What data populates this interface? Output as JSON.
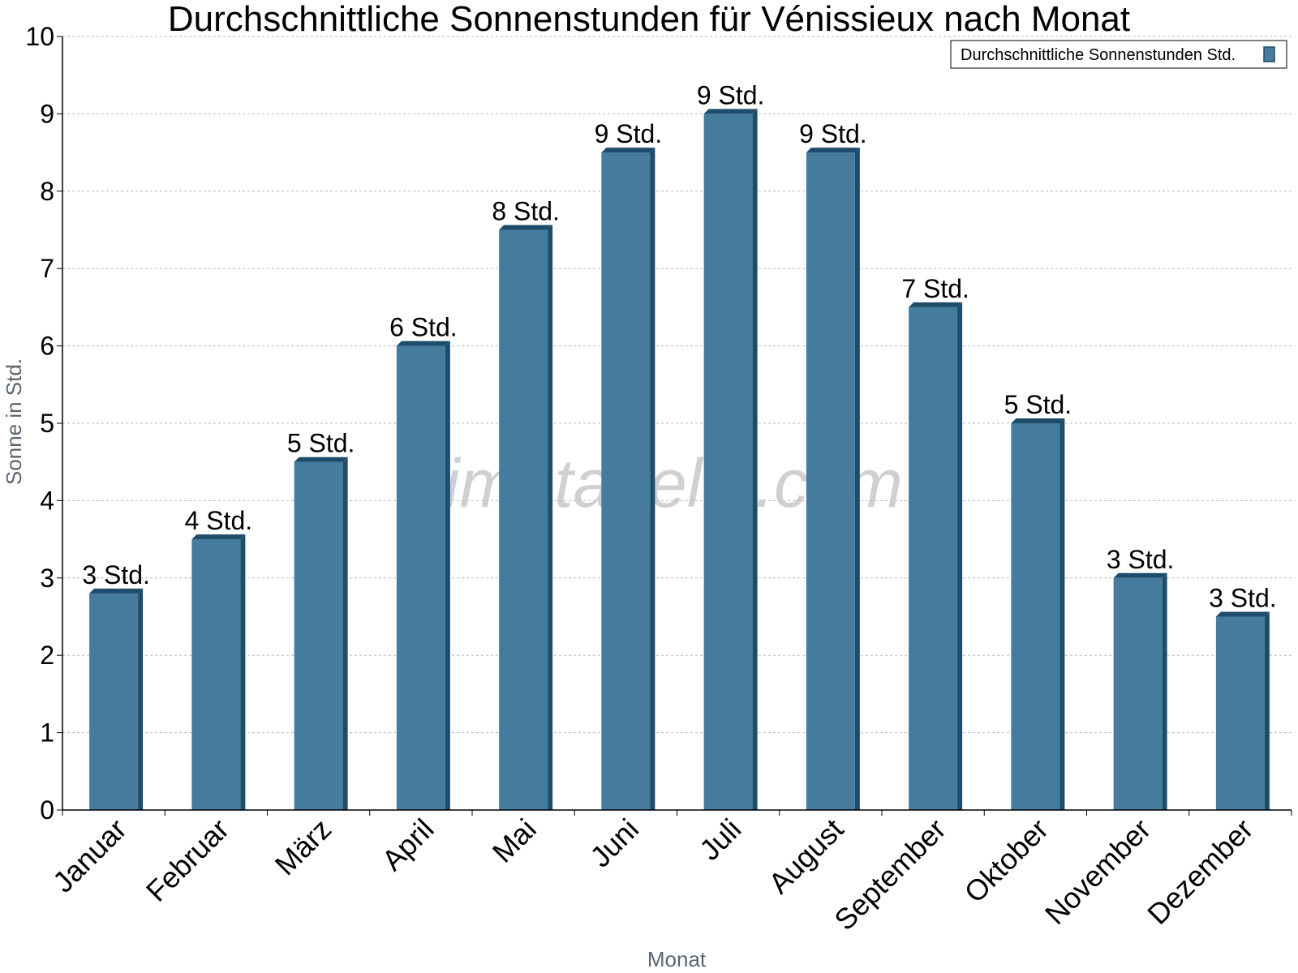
{
  "chart_data": {
    "type": "bar",
    "title": "Durchschnittliche Sonnenstunden für Vénissieux nach Monat",
    "xlabel": "Monat",
    "ylabel": "Sonne in Std.",
    "ylim": [
      0,
      10
    ],
    "yticks": [
      "0",
      "1",
      "2",
      "3",
      "4",
      "5",
      "6",
      "7",
      "8",
      "9",
      "10"
    ],
    "grid": true,
    "legend_position": "top-right",
    "categories": [
      "Januar",
      "Februar",
      "März",
      "April",
      "Mai",
      "Juni",
      "Juli",
      "August",
      "September",
      "Oktober",
      "November",
      "Dezember"
    ],
    "series": [
      {
        "name": "Durchschnittliche Sonnenstunden Std.",
        "color": "#457b9d",
        "values": [
          2.8,
          3.5,
          4.5,
          6.0,
          7.5,
          8.5,
          9.0,
          8.5,
          6.5,
          5.0,
          3.0,
          2.5
        ],
        "labels": [
          "3 Std.",
          "4 Std.",
          "5 Std.",
          "6 Std.",
          "8 Std.",
          "9 Std.",
          "9 Std.",
          "9 Std.",
          "7 Std.",
          "5 Std.",
          "3 Std.",
          "3 Std."
        ]
      }
    ]
  },
  "watermark": "klimatabelle.com"
}
